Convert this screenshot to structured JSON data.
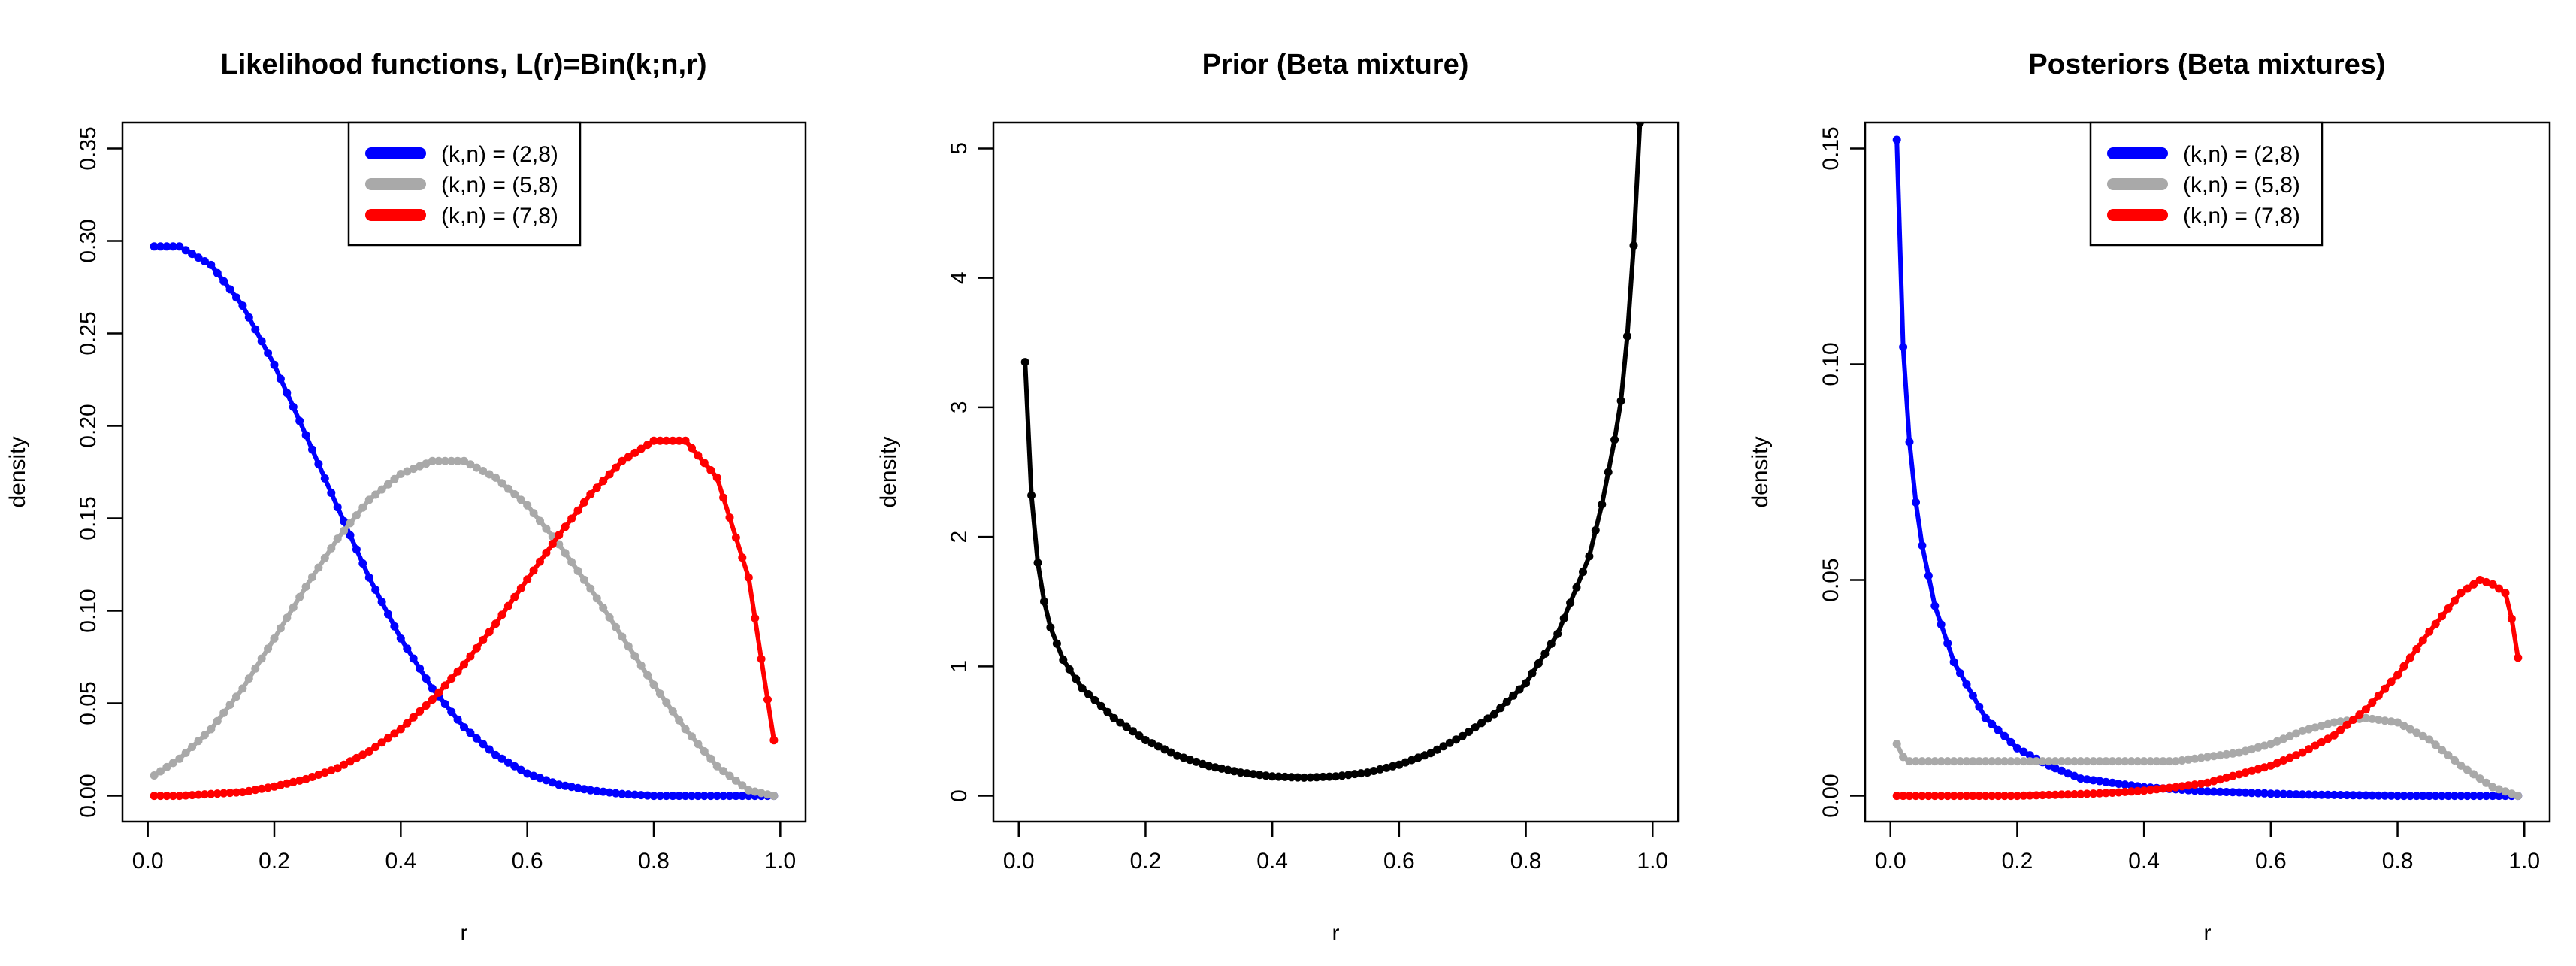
{
  "chart_data": [
    {
      "type": "line",
      "title": "Likelihood functions, L(r)=Bin(k;n,r)",
      "xlabel": "r",
      "ylabel": "density",
      "xlim": [
        0.0,
        1.0
      ],
      "ylim": [
        0.0,
        0.35
      ],
      "xticks": [
        "0.0",
        "0.2",
        "0.4",
        "0.6",
        "0.8",
        "1.0"
      ],
      "yticks": [
        "0.00",
        "0.05",
        "0.10",
        "0.15",
        "0.20",
        "0.25",
        "0.30",
        "0.35"
      ],
      "grid": false,
      "legend_position": "top-center",
      "x": [
        0.01,
        0.05,
        0.1,
        0.15,
        0.2,
        0.25,
        0.3,
        0.35,
        0.4,
        0.45,
        0.5,
        0.55,
        0.6,
        0.65,
        0.7,
        0.75,
        0.8,
        0.85,
        0.9,
        0.95,
        0.99
      ],
      "series": [
        {
          "name": "(k,n) = (2,8)",
          "color": "#0000ff",
          "values": [
            0.297,
            0.297,
            0.287,
            0.265,
            0.233,
            0.195,
            0.156,
            0.118,
            0.085,
            0.058,
            0.037,
            0.022,
            0.012,
            0.006,
            0.003,
            0.001,
            0.0,
            0.0,
            0.0,
            0.0,
            0.0
          ]
        },
        {
          "name": "(k,n) = (5,8)",
          "color": "#a9a9a9",
          "values": [
            0.011,
            0.02,
            0.036,
            0.058,
            0.085,
            0.113,
            0.139,
            0.16,
            0.174,
            0.181,
            0.181,
            0.172,
            0.157,
            0.136,
            0.112,
            0.086,
            0.06,
            0.036,
            0.016,
            0.003,
            0.0
          ]
        },
        {
          "name": "(k,n) = (7,8)",
          "color": "#ff0000",
          "values": [
            0.0,
            0.0,
            0.001,
            0.002,
            0.005,
            0.009,
            0.015,
            0.024,
            0.036,
            0.052,
            0.071,
            0.093,
            0.117,
            0.141,
            0.163,
            0.181,
            0.192,
            0.192,
            0.172,
            0.118,
            0.03
          ]
        }
      ]
    },
    {
      "type": "line",
      "title": "Prior (Beta mixture)",
      "xlabel": "r",
      "ylabel": "density",
      "xlim": [
        0.0,
        1.0
      ],
      "ylim": [
        0.0,
        5.0
      ],
      "xticks": [
        "0.0",
        "0.2",
        "0.4",
        "0.6",
        "0.8",
        "1.0"
      ],
      "yticks": [
        "0",
        "1",
        "2",
        "3",
        "4",
        "5"
      ],
      "grid": false,
      "x": [
        0.01,
        0.02,
        0.03,
        0.04,
        0.05,
        0.07,
        0.1,
        0.15,
        0.2,
        0.25,
        0.3,
        0.35,
        0.4,
        0.45,
        0.5,
        0.55,
        0.6,
        0.65,
        0.7,
        0.75,
        0.8,
        0.85,
        0.9,
        0.92,
        0.94,
        0.95,
        0.96,
        0.97,
        0.98
      ],
      "series": [
        {
          "name": "",
          "color": "#000000",
          "values": [
            3.35,
            2.32,
            1.8,
            1.5,
            1.3,
            1.05,
            0.83,
            0.6,
            0.43,
            0.31,
            0.23,
            0.18,
            0.15,
            0.14,
            0.15,
            0.18,
            0.24,
            0.33,
            0.46,
            0.63,
            0.87,
            1.25,
            1.85,
            2.25,
            2.75,
            3.05,
            3.55,
            4.25,
            5.2
          ]
        }
      ]
    },
    {
      "type": "line",
      "title": "Posteriors (Beta mixtures)",
      "xlabel": "r",
      "ylabel": "density",
      "xlim": [
        0.0,
        1.0
      ],
      "ylim": [
        0.0,
        0.15
      ],
      "xticks": [
        "0.0",
        "0.2",
        "0.4",
        "0.6",
        "0.8",
        "1.0"
      ],
      "yticks": [
        "0.00",
        "0.05",
        "0.10",
        "0.15"
      ],
      "grid": false,
      "legend_position": "top-center",
      "x": [
        0.01,
        0.02,
        0.03,
        0.04,
        0.05,
        0.07,
        0.1,
        0.15,
        0.2,
        0.25,
        0.3,
        0.35,
        0.4,
        0.45,
        0.5,
        0.55,
        0.6,
        0.65,
        0.7,
        0.75,
        0.8,
        0.85,
        0.9,
        0.93,
        0.95,
        0.97,
        0.98,
        0.99
      ],
      "series": [
        {
          "name": "(k,n) = (2,8)",
          "color": "#0000ff",
          "values": [
            0.152,
            0.104,
            0.082,
            0.068,
            0.058,
            0.044,
            0.031,
            0.018,
            0.011,
            0.007,
            0.004,
            0.003,
            0.002,
            0.0015,
            0.001,
            0.0008,
            0.0005,
            0.0003,
            0.0002,
            0.0001,
            0.0,
            0.0,
            0.0,
            0.0,
            0.0,
            0.0,
            0.0,
            0.0
          ]
        },
        {
          "name": "(k,n) = (5,8)",
          "color": "#a9a9a9",
          "values": [
            0.012,
            0.009,
            0.008,
            0.008,
            0.008,
            0.008,
            0.008,
            0.008,
            0.008,
            0.008,
            0.008,
            0.008,
            0.008,
            0.008,
            0.009,
            0.01,
            0.012,
            0.015,
            0.017,
            0.018,
            0.017,
            0.013,
            0.007,
            0.004,
            0.002,
            0.001,
            0.0005,
            0.0
          ]
        },
        {
          "name": "(k,n) = (7,8)",
          "color": "#ff0000",
          "values": [
            0.0,
            0.0,
            0.0,
            0.0,
            0.0,
            0.0,
            0.0,
            0.0,
            0.0,
            0.0002,
            0.0004,
            0.0007,
            0.0012,
            0.002,
            0.003,
            0.005,
            0.007,
            0.01,
            0.014,
            0.02,
            0.028,
            0.038,
            0.047,
            0.05,
            0.049,
            0.047,
            0.041,
            0.032
          ]
        }
      ]
    }
  ]
}
